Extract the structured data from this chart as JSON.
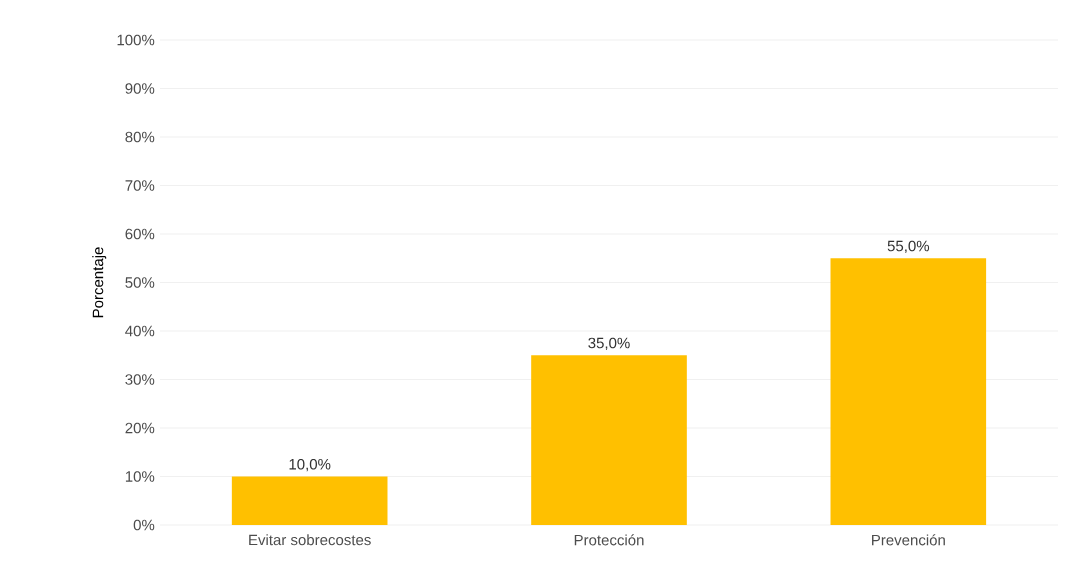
{
  "chart_data": {
    "type": "bar",
    "ylabel": "Porcentaje",
    "categories": [
      "Evitar sobrecostes",
      "Protección",
      "Prevención"
    ],
    "values": [
      10,
      35,
      55
    ],
    "color": "#ffc000",
    "value_labels": [
      "10,0%",
      "35,0%",
      "55,0%"
    ],
    "ylim": [
      0,
      100
    ],
    "yticks": [
      {
        "value": 0,
        "label": "0%"
      },
      {
        "value": 10,
        "label": "10%"
      },
      {
        "value": 20,
        "label": "20%"
      },
      {
        "value": 30,
        "label": "30%"
      },
      {
        "value": 40,
        "label": "40%"
      },
      {
        "value": 50,
        "label": "50%"
      },
      {
        "value": 60,
        "label": "60%"
      },
      {
        "value": 70,
        "label": "70%"
      },
      {
        "value": 80,
        "label": "80%"
      },
      {
        "value": 90,
        "label": "90%"
      },
      {
        "value": 100,
        "label": "100%"
      }
    ],
    "grid": "y"
  }
}
